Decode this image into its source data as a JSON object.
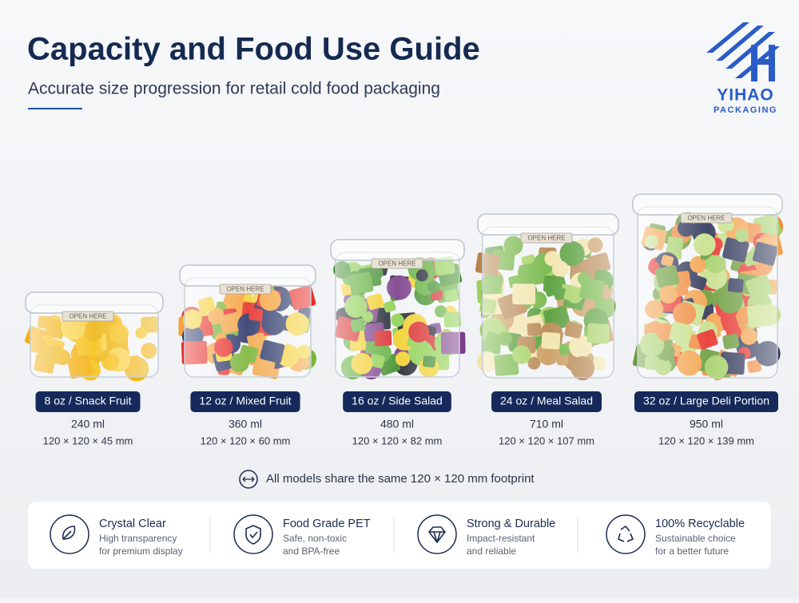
{
  "header": {
    "title": "Capacity and Food Use Guide",
    "subtitle": "Accurate size progression for retail cold food packaging"
  },
  "logo": {
    "name": "YIHAO",
    "tagline": "PACKAGING"
  },
  "container_tag": "OPEN HERE",
  "products": [
    {
      "label": "8 oz / Snack Fruit",
      "volume": "240 ml",
      "dimensions": "120 × 120 × 45 mm"
    },
    {
      "label": "12 oz / Mixed Fruit",
      "volume": "360 ml",
      "dimensions": "120 × 120 × 60 mm"
    },
    {
      "label": "16 oz / Side Salad",
      "volume": "480 ml",
      "dimensions": "120 × 120 × 82 mm"
    },
    {
      "label": "24 oz / Meal Salad",
      "volume": "710 ml",
      "dimensions": "120 × 120 × 107 mm"
    },
    {
      "label": "32 oz / Large Deli Portion",
      "volume": "950 ml",
      "dimensions": "120 × 120 × 139 mm"
    }
  ],
  "footprint_note": "All models share the same  120 × 120 mm footprint",
  "features": [
    {
      "title": "Crystal Clear",
      "lines": [
        "High transparency",
        "for premium display"
      ]
    },
    {
      "title": "Food Grade PET",
      "lines": [
        "Safe, non-toxic",
        "and BPA-free"
      ]
    },
    {
      "title": "Strong & Durable",
      "lines": [
        "Impact-resistant",
        "and reliable"
      ]
    },
    {
      "title": "100% Recyclable",
      "lines": [
        "Sustainable choice",
        "for a better future"
      ]
    }
  ]
}
